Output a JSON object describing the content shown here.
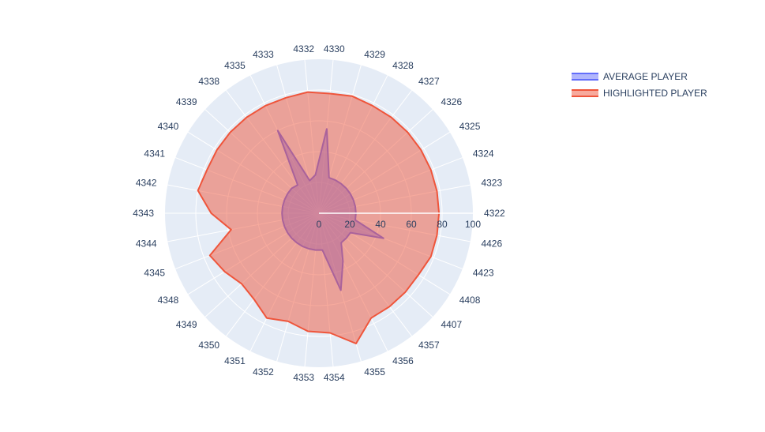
{
  "chart_data": {
    "type": "polar-area",
    "title": "",
    "radial_axis": {
      "range": [
        0,
        100
      ],
      "ticks": [
        0,
        20,
        40,
        60,
        80,
        100
      ]
    },
    "categories": [
      "4322",
      "4323",
      "4324",
      "4325",
      "4326",
      "4327",
      "4328",
      "4329",
      "4330",
      "4332",
      "4333",
      "4335",
      "4338",
      "4339",
      "4340",
      "4341",
      "4342",
      "4343",
      "4344",
      "4345",
      "4348",
      "4349",
      "4350",
      "4351",
      "4352",
      "4353",
      "4354",
      "4355",
      "4356",
      "4357",
      "4407",
      "4408",
      "4423",
      "4426"
    ],
    "series": [
      {
        "name": "AVERAGE PLAYER",
        "color": "#636efa",
        "fill": "rgba(99,110,250,0.5)",
        "values": [
          24,
          24,
          24,
          24,
          24,
          24,
          24,
          24,
          55,
          25,
          22,
          60,
          23,
          24,
          24,
          24,
          24,
          24,
          24,
          24,
          24,
          24,
          24,
          24,
          24,
          24,
          24,
          52,
          35,
          24,
          24,
          24,
          45,
          24
        ]
      },
      {
        "name": "HIGHLIGHTED PLAYER",
        "color": "#ef553b",
        "fill": "rgba(239,85,59,0.5)",
        "values": [
          78,
          78,
          78,
          78,
          78,
          78,
          78,
          79,
          78,
          79,
          78,
          78,
          78,
          78,
          78,
          78,
          80,
          70,
          58,
          76,
          72,
          68,
          70,
          76,
          73,
          77,
          78,
          88,
          76,
          76,
          76,
          76,
          78,
          78
        ]
      }
    ]
  },
  "legend": {
    "items": [
      {
        "label": "AVERAGE PLAYER",
        "color": "#636efa",
        "fill": "rgba(99,110,250,0.5)"
      },
      {
        "label": "HIGHLIGHTED PLAYER",
        "color": "#ef553b",
        "fill": "rgba(239,85,59,0.5)"
      }
    ]
  }
}
